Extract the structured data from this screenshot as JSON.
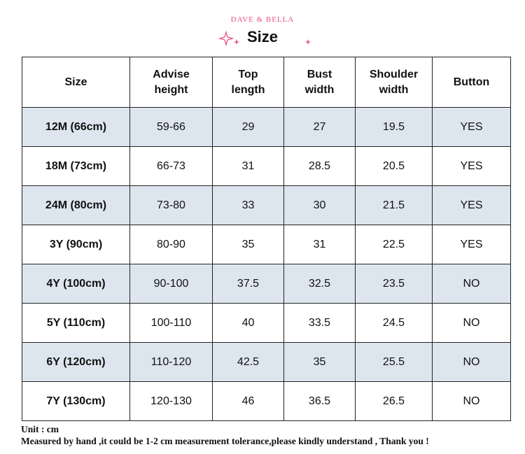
{
  "header": {
    "brand": "DAVE & BELLA",
    "title": "Size"
  },
  "table": {
    "columns": [
      "Size",
      "Advise height",
      "Top length",
      "Bust width",
      "Shoulder width",
      "Button"
    ],
    "rows": [
      [
        "12M (66cm)",
        "59-66",
        "29",
        "27",
        "19.5",
        "YES"
      ],
      [
        "18M (73cm)",
        "66-73",
        "31",
        "28.5",
        "20.5",
        "YES"
      ],
      [
        "24M (80cm)",
        "73-80",
        "33",
        "30",
        "21.5",
        "YES"
      ],
      [
        "3Y (90cm)",
        "80-90",
        "35",
        "31",
        "22.5",
        "YES"
      ],
      [
        "4Y (100cm)",
        "90-100",
        "37.5",
        "32.5",
        "23.5",
        "NO"
      ],
      [
        "5Y (110cm)",
        "100-110",
        "40",
        "33.5",
        "24.5",
        "NO"
      ],
      [
        "6Y (120cm)",
        "110-120",
        "42.5",
        "35",
        "25.5",
        "NO"
      ],
      [
        "7Y (130cm)",
        "120-130",
        "46",
        "36.5",
        "26.5",
        "NO"
      ]
    ]
  },
  "notes": [
    "Unit : cm",
    "Measured by hand ,it could be 1-2 cm measurement tolerance,please kindly understand , Thank you !"
  ]
}
